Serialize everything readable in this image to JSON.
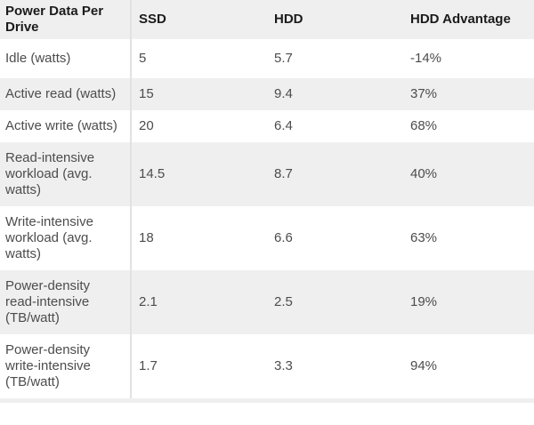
{
  "table": {
    "columns": [
      "Power Data Per Drive",
      "SSD",
      "HDD",
      "HDD Advantage"
    ],
    "rows": [
      [
        "Idle (watts)",
        "5",
        "5.7",
        "-14%"
      ],
      [
        "Active read (watts)",
        "15",
        "9.4",
        "37%"
      ],
      [
        "Active write (watts)",
        "20",
        "6.4",
        "68%"
      ],
      [
        "Read-intensive workload (avg. watts)",
        "14.5",
        "8.7",
        "40%"
      ],
      [
        "Write-intensive workload (avg. watts)",
        "18",
        "6.6",
        "63%"
      ],
      [
        "Power-density read-intensive (TB/watt)",
        "2.1",
        "2.5",
        "19%"
      ],
      [
        "Power-density write-intensive (TB/watt)",
        "1.7",
        "3.3",
        "94%"
      ]
    ]
  },
  "chart_data": {
    "type": "table",
    "title": "Power Data Per Drive",
    "categories": [
      "Idle (watts)",
      "Active read (watts)",
      "Active write (watts)",
      "Read-intensive workload (avg. watts)",
      "Write-intensive workload (avg. watts)",
      "Power-density read-intensive (TB/watt)",
      "Power-density write-intensive (TB/watt)"
    ],
    "series": [
      {
        "name": "SSD",
        "values": [
          5,
          15,
          20,
          14.5,
          18,
          2.1,
          1.7
        ]
      },
      {
        "name": "HDD",
        "values": [
          5.7,
          9.4,
          6.4,
          8.7,
          6.6,
          2.5,
          3.3
        ]
      },
      {
        "name": "HDD Advantage",
        "values": [
          "-14%",
          "37%",
          "68%",
          "40%",
          "63%",
          "19%",
          "94%"
        ]
      }
    ]
  },
  "colors": {
    "alt_row_bg": "#efefef",
    "header_bg": "#efefef",
    "divider": "#e2e2e2",
    "header_text": "#1b1b1b",
    "body_text": "#4c4c4c"
  }
}
